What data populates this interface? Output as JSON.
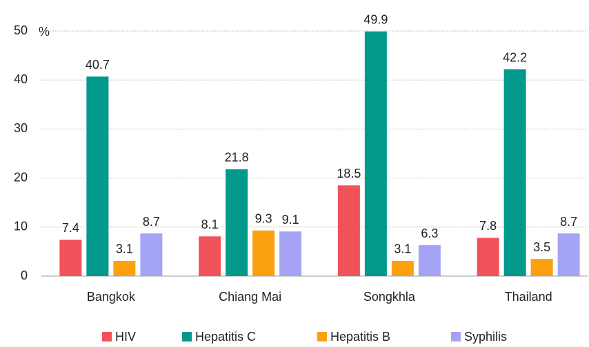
{
  "chart_data": {
    "type": "bar",
    "ylabel": "%",
    "categories": [
      "Bangkok",
      "Chiang Mai",
      "Songkhla",
      "Thailand"
    ],
    "series": [
      {
        "name": "HIV",
        "color": "#f0525a",
        "values": [
          7.4,
          8.1,
          18.5,
          7.8
        ]
      },
      {
        "name": "Hepatitis C",
        "color": "#00998c",
        "values": [
          40.7,
          21.8,
          49.9,
          42.2
        ]
      },
      {
        "name": "Hepatitis B",
        "color": "#fba10f",
        "values": [
          3.1,
          9.3,
          3.1,
          3.5
        ]
      },
      {
        "name": "Syphilis",
        "color": "#a5a3f3",
        "values": [
          8.7,
          9.1,
          6.3,
          8.7
        ]
      }
    ],
    "ylim": [
      0,
      50
    ],
    "yticks": [
      0,
      10,
      20,
      30,
      40,
      50
    ],
    "grid": true,
    "legend": "bottom"
  }
}
